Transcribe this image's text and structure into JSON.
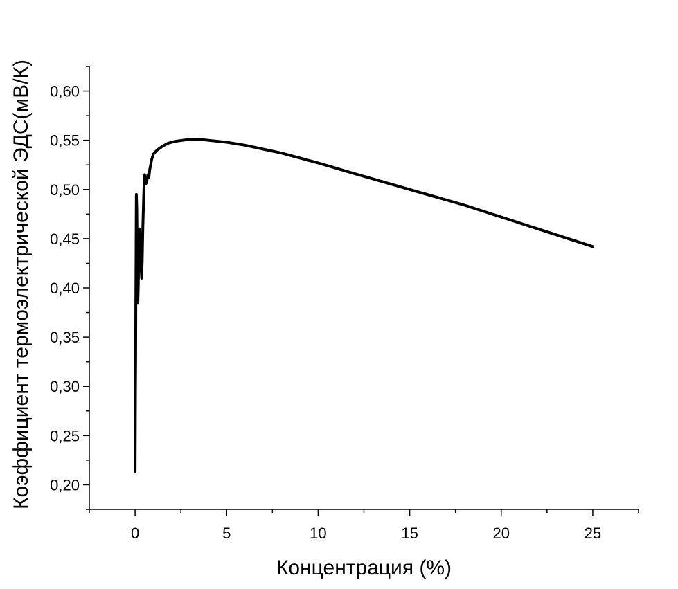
{
  "chart_data": {
    "type": "line",
    "title": "",
    "xlabel": "Концентрация (%)",
    "ylabel": "Коэффициент термоэлектрической ЭДС(мВ/К)",
    "xlim": [
      -2.5,
      27.5
    ],
    "ylim": [
      0.175,
      0.625
    ],
    "x_ticks": [
      0,
      5,
      10,
      15,
      20,
      25
    ],
    "x_tick_labels": [
      "0",
      "5",
      "10",
      "15",
      "20",
      "25"
    ],
    "y_ticks": [
      0.2,
      0.25,
      0.3,
      0.35,
      0.4,
      0.45,
      0.5,
      0.55,
      0.6
    ],
    "y_tick_labels": [
      "0,20",
      "0,25",
      "0,30",
      "0,35",
      "0,40",
      "0,45",
      "0,50",
      "0,55",
      "0,60"
    ],
    "grid": false,
    "line_color": "#000000",
    "series": [
      {
        "x": [
          0.0,
          0.01,
          0.02,
          0.03,
          0.04,
          0.05,
          0.06,
          0.07,
          0.09,
          0.11,
          0.13,
          0.15,
          0.17,
          0.19,
          0.21,
          0.24,
          0.27,
          0.3,
          0.33,
          0.36,
          0.39,
          0.42,
          0.45,
          0.48,
          0.52,
          0.56,
          0.6,
          0.65,
          0.7,
          0.75,
          0.8,
          0.9,
          1.0,
          1.2,
          1.5,
          1.8,
          2.2,
          2.6,
          3.0,
          3.5,
          4.0,
          5.0,
          6.0,
          8.0,
          10.0,
          12.0,
          15.0,
          18.0,
          20.0,
          22.0,
          25.0
        ],
        "y": [
          0.213,
          0.25,
          0.3,
          0.33,
          0.38,
          0.42,
          0.47,
          0.495,
          0.48,
          0.44,
          0.4,
          0.385,
          0.4,
          0.42,
          0.445,
          0.46,
          0.455,
          0.44,
          0.42,
          0.41,
          0.43,
          0.46,
          0.48,
          0.5,
          0.515,
          0.51,
          0.506,
          0.51,
          0.515,
          0.512,
          0.52,
          0.53,
          0.536,
          0.54,
          0.544,
          0.547,
          0.549,
          0.55,
          0.551,
          0.551,
          0.55,
          0.548,
          0.545,
          0.537,
          0.527,
          0.516,
          0.5,
          0.484,
          0.472,
          0.46,
          0.442
        ]
      }
    ]
  }
}
